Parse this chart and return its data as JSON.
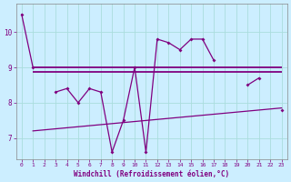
{
  "xlabel": "Windchill (Refroidissement éolien,°C)",
  "x": [
    0,
    1,
    2,
    3,
    4,
    5,
    6,
    7,
    8,
    9,
    10,
    11,
    12,
    13,
    14,
    15,
    16,
    17,
    18,
    19,
    20,
    21,
    22,
    23
  ],
  "line1": [
    10.5,
    9.0,
    null,
    8.3,
    8.4,
    8.0,
    8.4,
    8.3,
    6.6,
    7.5,
    9.0,
    6.6,
    9.8,
    9.7,
    9.5,
    9.8,
    9.8,
    9.2,
    null,
    null,
    8.5,
    8.7,
    null,
    7.8
  ],
  "hline_y1": 9.0,
  "hline_y2": 8.88,
  "hline_x_start": 1,
  "hline_x_end": 23,
  "trend_x": [
    1,
    23
  ],
  "trend_y": [
    7.2,
    7.85
  ],
  "color": "#800080",
  "bg_color": "#cceeff",
  "grid_color": "#aadddd",
  "ylim": [
    6.4,
    10.8
  ],
  "yticks": [
    7,
    8,
    9,
    10
  ],
  "xticks": [
    0,
    1,
    2,
    3,
    4,
    5,
    6,
    7,
    8,
    9,
    10,
    11,
    12,
    13,
    14,
    15,
    16,
    17,
    18,
    19,
    20,
    21,
    22,
    23
  ]
}
